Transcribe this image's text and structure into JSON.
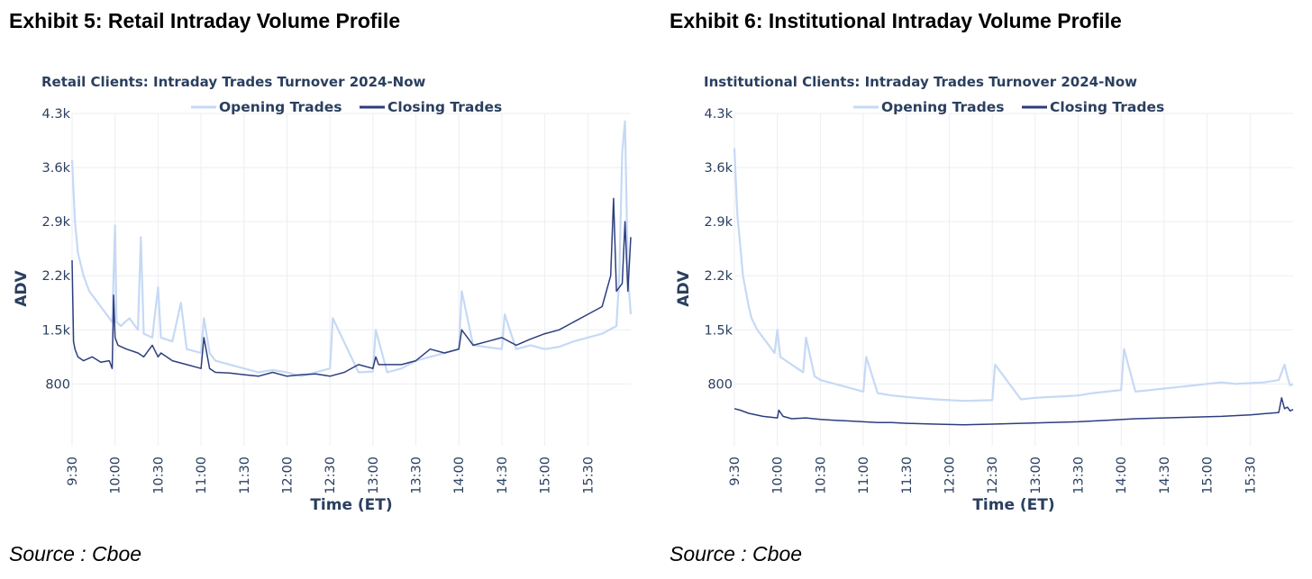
{
  "exhibits": [
    {
      "title": "Exhibit 5: Retail Intraday Volume Profile",
      "source": "Source : Cboe"
    },
    {
      "title": "Exhibit 6: Institutional Intraday Volume Profile",
      "source": "Source : Cboe"
    }
  ],
  "colors": {
    "opening": "#c6d9f5",
    "closing": "#2d3e7e"
  },
  "chart_data": [
    {
      "type": "line",
      "title": "Retail Clients: Intraday Trades Turnover 2024-Now",
      "xlabel": "Time (ET)",
      "ylabel": "ADV",
      "x_ticks": [
        "9:30",
        "10:00",
        "10:30",
        "11:00",
        "11:30",
        "12:00",
        "12:30",
        "13:00",
        "13:30",
        "14:00",
        "14:30",
        "15:00",
        "15:30"
      ],
      "y_ticks": [
        "800",
        "1.5k",
        "2.2k",
        "2.9k",
        "3.6k",
        "4.3k"
      ],
      "y_tick_values": [
        800,
        1500,
        2200,
        2900,
        3600,
        4300
      ],
      "xlim": [
        "9:30",
        "16:00"
      ],
      "ylim": [
        0,
        4300
      ],
      "grid": true,
      "legend_position": "top",
      "series": [
        {
          "name": "Opening Trades",
          "x_minutes": [
            0,
            2,
            4,
            8,
            12,
            18,
            24,
            28,
            30,
            31,
            34,
            40,
            46,
            48,
            50,
            56,
            60,
            62,
            70,
            76,
            80,
            90,
            92,
            96,
            100,
            110,
            120,
            130,
            140,
            150,
            160,
            180,
            182,
            200,
            210,
            212,
            220,
            230,
            240,
            250,
            270,
            272,
            280,
            300,
            302,
            310,
            320,
            330,
            340,
            350,
            360,
            370,
            380,
            382,
            384,
            386,
            388,
            390
          ],
          "values": [
            3700,
            2900,
            2500,
            2200,
            2000,
            1850,
            1700,
            1600,
            2850,
            1600,
            1550,
            1650,
            1500,
            2700,
            1450,
            1400,
            2050,
            1400,
            1350,
            1850,
            1250,
            1200,
            1650,
            1200,
            1100,
            1050,
            1000,
            950,
            980,
            950,
            900,
            1000,
            1650,
            950,
            960,
            1500,
            950,
            1000,
            1100,
            1150,
            1250,
            2000,
            1300,
            1250,
            1700,
            1250,
            1300,
            1250,
            1280,
            1350,
            1400,
            1450,
            1550,
            2200,
            3800,
            4200,
            2200,
            1700
          ]
        },
        {
          "name": "Closing Trades",
          "x_minutes": [
            0,
            1,
            2,
            4,
            8,
            14,
            20,
            26,
            28,
            29,
            30,
            32,
            38,
            46,
            50,
            56,
            60,
            62,
            66,
            70,
            80,
            90,
            92,
            96,
            100,
            110,
            120,
            130,
            140,
            150,
            160,
            170,
            180,
            190,
            200,
            210,
            212,
            214,
            220,
            230,
            240,
            250,
            260,
            270,
            272,
            280,
            290,
            300,
            310,
            320,
            330,
            340,
            350,
            360,
            370,
            376,
            378,
            380,
            384,
            386,
            388,
            390
          ],
          "values": [
            2400,
            1350,
            1250,
            1150,
            1100,
            1150,
            1080,
            1100,
            1000,
            1950,
            1400,
            1300,
            1250,
            1200,
            1150,
            1300,
            1150,
            1200,
            1150,
            1100,
            1050,
            1000,
            1400,
            1000,
            950,
            940,
            920,
            900,
            950,
            900,
            920,
            930,
            900,
            950,
            1050,
            1000,
            1150,
            1050,
            1050,
            1050,
            1100,
            1250,
            1200,
            1250,
            1500,
            1300,
            1350,
            1400,
            1300,
            1380,
            1450,
            1500,
            1600,
            1700,
            1800,
            2200,
            3200,
            2000,
            2100,
            2900,
            2000,
            2700
          ]
        }
      ]
    },
    {
      "type": "line",
      "title": "Institutional Clients: Intraday Trades Turnover 2024-Now",
      "xlabel": "Time (ET)",
      "ylabel": "ADV",
      "x_ticks": [
        "9:30",
        "10:00",
        "10:30",
        "11:00",
        "11:30",
        "12:00",
        "12:30",
        "13:00",
        "13:30",
        "14:00",
        "14:30",
        "15:00",
        "15:30"
      ],
      "y_ticks": [
        "800",
        "1.5k",
        "2.2k",
        "2.9k",
        "3.6k",
        "4.3k"
      ],
      "y_tick_values": [
        800,
        1500,
        2200,
        2900,
        3600,
        4300
      ],
      "xlim": [
        "9:30",
        "16:00"
      ],
      "ylim": [
        0,
        4300
      ],
      "grid": true,
      "legend_position": "top",
      "series": [
        {
          "name": "Opening Trades",
          "x_minutes": [
            0,
            2,
            4,
            6,
            8,
            10,
            12,
            16,
            20,
            24,
            28,
            30,
            32,
            36,
            40,
            44,
            48,
            50,
            56,
            60,
            70,
            80,
            90,
            92,
            100,
            110,
            120,
            140,
            160,
            180,
            182,
            200,
            210,
            220,
            230,
            240,
            250,
            260,
            270,
            272,
            280,
            290,
            300,
            310,
            320,
            330,
            340,
            350,
            360,
            370,
            380,
            384,
            386,
            388,
            390
          ],
          "values": [
            3850,
            3000,
            2600,
            2200,
            2000,
            1800,
            1650,
            1500,
            1400,
            1300,
            1200,
            1500,
            1150,
            1100,
            1050,
            1000,
            950,
            1400,
            900,
            850,
            800,
            750,
            700,
            1150,
            680,
            650,
            630,
            600,
            580,
            590,
            1050,
            600,
            620,
            630,
            640,
            650,
            680,
            700,
            720,
            1250,
            700,
            720,
            740,
            760,
            780,
            800,
            820,
            800,
            810,
            820,
            850,
            1050,
            900,
            780,
            800
          ]
        },
        {
          "name": "Closing Trades",
          "x_minutes": [
            0,
            4,
            10,
            20,
            30,
            31,
            34,
            40,
            50,
            60,
            70,
            80,
            90,
            100,
            110,
            120,
            140,
            160,
            180,
            200,
            220,
            240,
            260,
            280,
            300,
            320,
            340,
            360,
            380,
            382,
            384,
            386,
            388,
            390
          ],
          "values": [
            480,
            460,
            420,
            380,
            360,
            460,
            380,
            350,
            360,
            340,
            330,
            320,
            310,
            300,
            300,
            290,
            280,
            270,
            280,
            290,
            300,
            310,
            330,
            350,
            360,
            370,
            380,
            400,
            430,
            620,
            480,
            500,
            450,
            470
          ]
        }
      ]
    }
  ]
}
